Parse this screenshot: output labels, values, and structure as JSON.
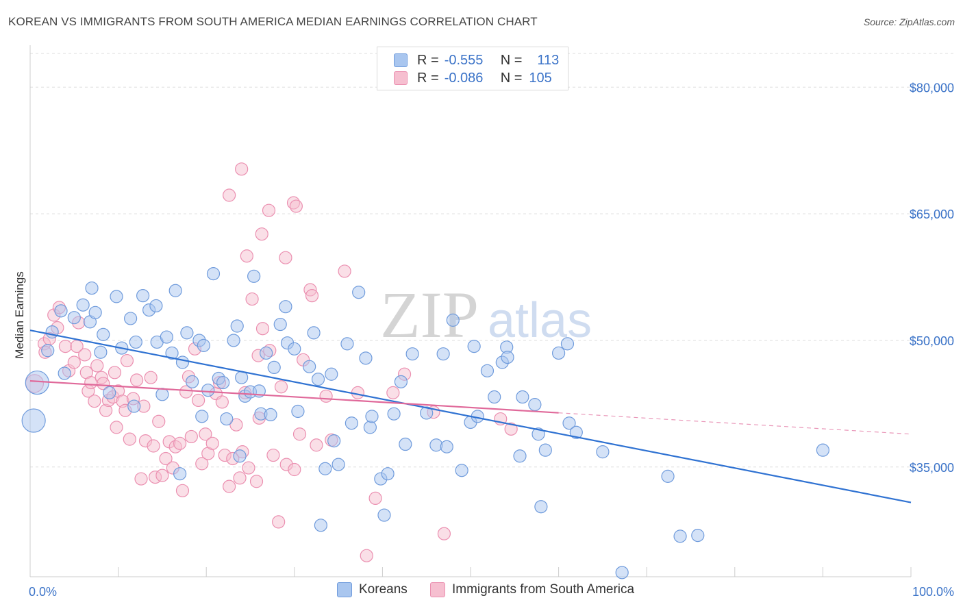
{
  "title": "KOREAN VS IMMIGRANTS FROM SOUTH AMERICA MEDIAN EARNINGS CORRELATION CHART",
  "source": "Source: ZipAtlas.com",
  "watermark": {
    "zip": "ZIP",
    "atlas": "atlas"
  },
  "legend": {
    "rows": [
      {
        "r_label": "R =",
        "r_value": "-0.555",
        "n_label": "N =",
        "n_value": "113"
      },
      {
        "r_label": "R =",
        "r_value": "-0.086",
        "n_label": "N =",
        "n_value": "105"
      }
    ]
  },
  "bottom_legend": [
    {
      "name": "Koreans"
    },
    {
      "name": "Immigrants from South America"
    }
  ],
  "colors": {
    "blue_fill": "#a9c6ef",
    "blue_stroke": "#6f9bdc",
    "blue_line": "#2f72d2",
    "pink_fill": "#f6bfd0",
    "pink_stroke": "#eb8fb0",
    "pink_line": "#e0699a",
    "tick_label": "#3b73c8",
    "grid": "#dddddd"
  },
  "chart_data": {
    "type": "scatter",
    "title": "KOREAN VS IMMIGRANTS FROM SOUTH AMERICA MEDIAN EARNINGS CORRELATION CHART",
    "xlabel": "",
    "ylabel": "Median Earnings",
    "xlim": [
      0,
      100
    ],
    "ylim": [
      22000,
      84000
    ],
    "x_tick_labels": [
      "0.0%",
      "100.0%"
    ],
    "y_ticks": [
      35000,
      50000,
      65000,
      80000
    ],
    "y_tick_labels": [
      "$35,000",
      "$50,000",
      "$65,000",
      "$80,000"
    ],
    "grid": true,
    "legend_position": "top-center",
    "series": [
      {
        "name": "Koreans",
        "color": "#a9c6ef",
        "trend": {
          "x": [
            0,
            100
          ],
          "y": [
            51200,
            30800
          ],
          "solid_to": 100
        },
        "points": [
          [
            0.8,
            45000,
            "l"
          ],
          [
            0.4,
            40500,
            "l"
          ],
          [
            2.0,
            48800
          ],
          [
            2.5,
            51000
          ],
          [
            3.5,
            53500
          ],
          [
            3.9,
            46100
          ],
          [
            5.0,
            52700
          ],
          [
            6.0,
            54200
          ],
          [
            6.8,
            52200
          ],
          [
            7.0,
            56200
          ],
          [
            7.4,
            53300
          ],
          [
            8.0,
            48600
          ],
          [
            8.3,
            50700
          ],
          [
            9.0,
            43800
          ],
          [
            9.8,
            55200
          ],
          [
            10.4,
            49100
          ],
          [
            11.4,
            52600
          ],
          [
            11.8,
            42200
          ],
          [
            12.0,
            49800
          ],
          [
            12.8,
            55300
          ],
          [
            13.5,
            53600
          ],
          [
            14.3,
            54100
          ],
          [
            14.4,
            49800
          ],
          [
            15.0,
            43600
          ],
          [
            15.5,
            50400
          ],
          [
            16.1,
            48500
          ],
          [
            16.5,
            55900
          ],
          [
            17.0,
            34200
          ],
          [
            17.3,
            47400
          ],
          [
            17.8,
            50900
          ],
          [
            18.4,
            45100
          ],
          [
            19.2,
            50000
          ],
          [
            19.5,
            41000
          ],
          [
            19.7,
            49400
          ],
          [
            20.2,
            44100
          ],
          [
            20.8,
            57900
          ],
          [
            21.4,
            45500
          ],
          [
            21.9,
            45000
          ],
          [
            22.3,
            40700
          ],
          [
            23.1,
            50000
          ],
          [
            23.5,
            51700
          ],
          [
            23.8,
            36300
          ],
          [
            24.0,
            45600
          ],
          [
            24.4,
            43400
          ],
          [
            25.0,
            43900
          ],
          [
            25.4,
            57600
          ],
          [
            26.0,
            44000
          ],
          [
            26.2,
            41300
          ],
          [
            26.8,
            48500
          ],
          [
            27.3,
            41200
          ],
          [
            27.7,
            46800
          ],
          [
            28.4,
            51900
          ],
          [
            29.0,
            54000
          ],
          [
            29.2,
            49700
          ],
          [
            30.0,
            49000
          ],
          [
            30.4,
            41600
          ],
          [
            31.7,
            46900
          ],
          [
            32.2,
            50900
          ],
          [
            32.7,
            45400
          ],
          [
            33.0,
            28100
          ],
          [
            33.5,
            34800
          ],
          [
            34.2,
            46000
          ],
          [
            34.5,
            38100
          ],
          [
            35.0,
            35300
          ],
          [
            36.0,
            49600
          ],
          [
            36.5,
            40200
          ],
          [
            37.3,
            55700
          ],
          [
            38.1,
            47900
          ],
          [
            38.6,
            39700
          ],
          [
            38.8,
            41000
          ],
          [
            39.8,
            33600
          ],
          [
            40.2,
            29300
          ],
          [
            40.6,
            34200
          ],
          [
            41.3,
            41300
          ],
          [
            42.1,
            45100
          ],
          [
            42.6,
            37700
          ],
          [
            43.4,
            48400
          ],
          [
            45.0,
            41400
          ],
          [
            46.1,
            37600
          ],
          [
            46.9,
            48400
          ],
          [
            47.3,
            37400
          ],
          [
            48.0,
            52400
          ],
          [
            49.0,
            34600
          ],
          [
            50.0,
            40300
          ],
          [
            50.4,
            49300
          ],
          [
            50.8,
            41000
          ],
          [
            51.9,
            46400
          ],
          [
            52.7,
            43300
          ],
          [
            53.6,
            47400
          ],
          [
            54.1,
            49200
          ],
          [
            54.2,
            48000
          ],
          [
            55.6,
            36300
          ],
          [
            55.9,
            43300
          ],
          [
            57.3,
            42400
          ],
          [
            57.7,
            38900
          ],
          [
            58.0,
            30300
          ],
          [
            58.5,
            37000
          ],
          [
            60.0,
            48500
          ],
          [
            61.0,
            49600
          ],
          [
            61.2,
            40200
          ],
          [
            62.0,
            39100
          ],
          [
            65.0,
            36800
          ],
          [
            67.2,
            22500
          ],
          [
            72.4,
            33900
          ],
          [
            73.8,
            26800
          ],
          [
            75.8,
            26900
          ],
          [
            90.0,
            37000
          ]
        ]
      },
      {
        "name": "Immigrants from South America",
        "color": "#f6bfd0",
        "trend": {
          "x": [
            0,
            100
          ],
          "y": [
            45200,
            38900
          ],
          "solid_to": 60
        },
        "points": [
          [
            0.5,
            44900,
            "m"
          ],
          [
            1.6,
            49600
          ],
          [
            1.7,
            48600
          ],
          [
            2.2,
            50200
          ],
          [
            2.7,
            53000
          ],
          [
            3.1,
            51500
          ],
          [
            3.3,
            53900
          ],
          [
            4.0,
            49300
          ],
          [
            4.4,
            46400
          ],
          [
            5.0,
            47400
          ],
          [
            5.3,
            49300
          ],
          [
            5.5,
            52100
          ],
          [
            6.2,
            48300
          ],
          [
            6.4,
            46200
          ],
          [
            6.6,
            44000
          ],
          [
            6.9,
            45000
          ],
          [
            7.3,
            42800
          ],
          [
            7.6,
            47000
          ],
          [
            8.1,
            45600
          ],
          [
            8.3,
            44900
          ],
          [
            8.6,
            41700
          ],
          [
            8.9,
            42900
          ],
          [
            9.4,
            43300
          ],
          [
            9.6,
            46200
          ],
          [
            9.8,
            39700
          ],
          [
            10.0,
            44000
          ],
          [
            10.5,
            42800
          ],
          [
            10.8,
            41700
          ],
          [
            11.0,
            47600
          ],
          [
            11.3,
            38300
          ],
          [
            11.7,
            43100
          ],
          [
            12.1,
            45300
          ],
          [
            12.6,
            33600
          ],
          [
            12.9,
            42200
          ],
          [
            13.1,
            38100
          ],
          [
            13.7,
            45600
          ],
          [
            14.0,
            37500
          ],
          [
            14.2,
            33800
          ],
          [
            14.6,
            40400
          ],
          [
            15.0,
            34000
          ],
          [
            15.4,
            36000
          ],
          [
            15.8,
            38000
          ],
          [
            16.2,
            34900
          ],
          [
            16.5,
            37400
          ],
          [
            17.0,
            37800
          ],
          [
            17.3,
            32200
          ],
          [
            17.7,
            43900
          ],
          [
            18.0,
            45700
          ],
          [
            18.3,
            38600
          ],
          [
            18.7,
            49000
          ],
          [
            19.1,
            42900
          ],
          [
            19.5,
            35400
          ],
          [
            19.9,
            38900
          ],
          [
            20.2,
            36600
          ],
          [
            20.7,
            37800
          ],
          [
            21.1,
            43700
          ],
          [
            21.5,
            45000
          ],
          [
            21.8,
            42700
          ],
          [
            22.1,
            36400
          ],
          [
            22.6,
            32700
          ],
          [
            23.0,
            36000
          ],
          [
            23.4,
            40000
          ],
          [
            23.8,
            33700
          ],
          [
            24.1,
            36800
          ],
          [
            24.4,
            43800
          ],
          [
            24.8,
            34900
          ],
          [
            25.2,
            54900
          ],
          [
            25.7,
            33300
          ],
          [
            26.0,
            40800
          ],
          [
            26.4,
            51400
          ],
          [
            27.2,
            48800
          ],
          [
            27.6,
            36400
          ],
          [
            28.5,
            44500
          ],
          [
            29.1,
            35300
          ],
          [
            30.0,
            34700
          ],
          [
            30.6,
            38900
          ],
          [
            31.0,
            47700
          ],
          [
            31.8,
            56000
          ],
          [
            32.5,
            37600
          ],
          [
            33.6,
            43400
          ],
          [
            34.2,
            38200
          ],
          [
            35.7,
            58200
          ],
          [
            37.2,
            43800
          ],
          [
            38.2,
            24500
          ],
          [
            39.2,
            31300
          ],
          [
            41.2,
            43800
          ],
          [
            42.5,
            46000
          ],
          [
            45.8,
            41500
          ],
          [
            47.0,
            27100
          ],
          [
            53.4,
            40700
          ],
          [
            54.6,
            39500
          ],
          [
            24.0,
            70300
          ],
          [
            22.6,
            67200
          ],
          [
            27.1,
            65400
          ],
          [
            29.9,
            66300
          ],
          [
            30.2,
            65900
          ],
          [
            26.3,
            62600
          ],
          [
            24.6,
            60000
          ],
          [
            29.0,
            59800
          ],
          [
            25.9,
            48200
          ],
          [
            28.2,
            28500
          ],
          [
            32.0,
            55300
          ]
        ]
      }
    ]
  }
}
